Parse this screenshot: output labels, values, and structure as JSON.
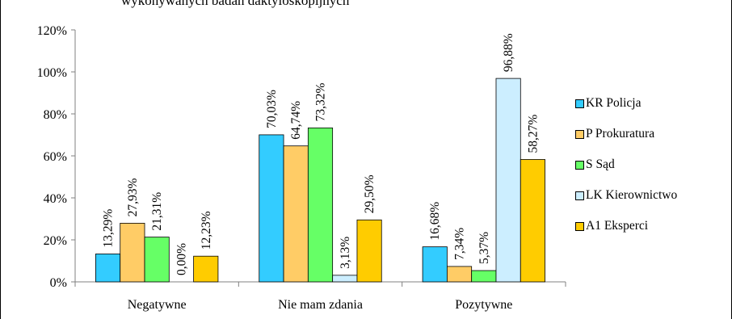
{
  "title_partial": "wykonywanych badań daktyloskopijnych",
  "chart_data": {
    "type": "bar",
    "categories": [
      "Negatywne",
      "Nie mam zdania",
      "Pozytywne"
    ],
    "ylim": [
      0,
      120
    ],
    "yticks": [
      0,
      20,
      40,
      60,
      80,
      100,
      120
    ],
    "ytick_labels": [
      "0%",
      "20%",
      "40%",
      "60%",
      "80%",
      "100%",
      "120%"
    ],
    "grid": false,
    "legend_position": "right",
    "series": [
      {
        "name": "KR Policja",
        "color": "#33ccff",
        "values": [
          13.29,
          70.03,
          16.68
        ],
        "labels": [
          "13,29%",
          "70,03%",
          "16,68%"
        ]
      },
      {
        "name": "P Prokuratura",
        "color": "#ffcc66",
        "values": [
          27.93,
          64.74,
          7.34
        ],
        "labels": [
          "27,93%",
          "64,74%",
          "7,34%"
        ]
      },
      {
        "name": "S Sąd",
        "color": "#66ff66",
        "values": [
          21.31,
          73.32,
          5.37
        ],
        "labels": [
          "21,31%",
          "73,32%",
          "5,37%"
        ]
      },
      {
        "name": "LK Kierownictwo",
        "color": "#cceeff",
        "values": [
          0.0,
          3.13,
          96.88
        ],
        "labels": [
          "0,00%",
          "3,13%",
          "96,88%"
        ]
      },
      {
        "name": "A1 Eksperci",
        "color": "#ffcc00",
        "values": [
          12.23,
          29.5,
          58.27
        ],
        "labels": [
          "12,23%",
          "29,50%",
          "58,27%"
        ]
      }
    ]
  }
}
